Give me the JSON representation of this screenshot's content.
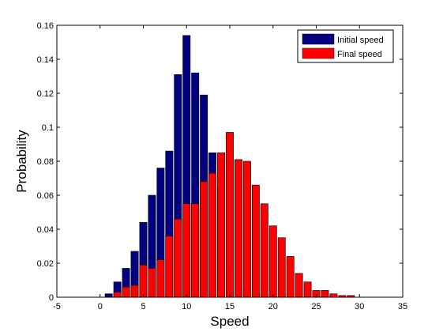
{
  "chart_data": {
    "type": "bar",
    "xlabel": "Speed",
    "ylabel": "Probability",
    "xlim": [
      -5,
      35
    ],
    "ylim": [
      0,
      0.16
    ],
    "xticks": [
      -5,
      0,
      5,
      10,
      15,
      20,
      25,
      30,
      35
    ],
    "yticks": [
      0,
      0.02,
      0.04,
      0.06,
      0.08,
      0.1,
      0.12,
      0.14,
      0.16
    ],
    "yticklabels": [
      "0",
      "0.02",
      "0.04",
      "0.06",
      "0.08",
      "0.1",
      "0.12",
      "0.14",
      "0.16"
    ],
    "grid": false,
    "legend_position": "top-right",
    "bar_width": 0.85,
    "series": [
      {
        "name": "Initial speed",
        "color": "#000080",
        "x": [
          1,
          2,
          3,
          4,
          5,
          6,
          7,
          8,
          9,
          10,
          11,
          12,
          13,
          14,
          15,
          16,
          17,
          18,
          19,
          20,
          21,
          22,
          23,
          24,
          25,
          26,
          27,
          28,
          29
        ],
        "values": [
          0.002,
          0.009,
          0.017,
          0.027,
          0.044,
          0.06,
          0.076,
          0.086,
          0.131,
          0.154,
          0.132,
          0.119,
          0.085,
          0.065,
          0.015,
          0.006,
          0.004,
          0.002,
          0.001,
          0.0,
          0.0,
          0.0,
          0.0,
          0.0,
          0.0,
          0.0,
          0.0,
          0.0,
          0.0
        ]
      },
      {
        "name": "Final speed",
        "color": "#ff0000",
        "x": [
          1,
          2,
          3,
          4,
          5,
          6,
          7,
          8,
          9,
          10,
          11,
          12,
          13,
          14,
          15,
          16,
          17,
          18,
          19,
          20,
          21,
          22,
          23,
          24,
          25,
          26,
          27,
          28,
          29
        ],
        "values": [
          0.0,
          0.003,
          0.006,
          0.007,
          0.019,
          0.017,
          0.022,
          0.036,
          0.046,
          0.055,
          0.055,
          0.068,
          0.073,
          0.085,
          0.097,
          0.081,
          0.08,
          0.066,
          0.055,
          0.042,
          0.035,
          0.024,
          0.014,
          0.009,
          0.004,
          0.004,
          0.002,
          0.001,
          0.001
        ]
      }
    ]
  }
}
